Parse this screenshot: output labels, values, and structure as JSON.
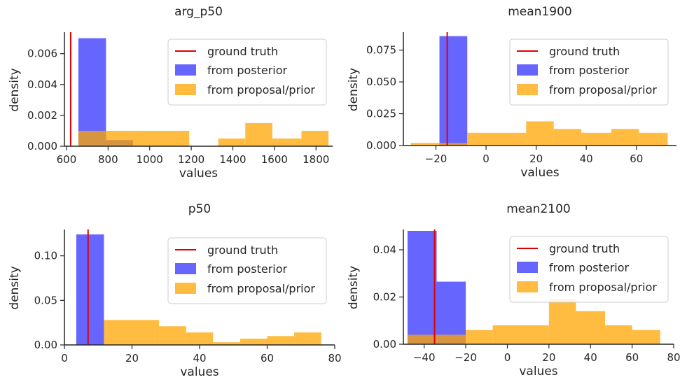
{
  "chart_data": [
    {
      "type": "histogram",
      "title": "arg_p50",
      "xlabel": "values",
      "ylabel": "density",
      "xlim": [
        590,
        1880
      ],
      "ylim": [
        0,
        0.0073
      ],
      "xticks": [
        600,
        800,
        1000,
        1200,
        1400,
        1600,
        1800
      ],
      "xtick_labels": [
        "600",
        "800",
        "1000",
        "1200",
        "1400",
        "1600",
        "1800"
      ],
      "yticks": [
        0,
        0.002,
        0.004,
        0.006
      ],
      "ytick_labels": [
        "0.000",
        "0.002",
        "0.004",
        "0.006"
      ],
      "ground_truth": 620,
      "legend_position": "top-right",
      "series": [
        {
          "name": "from posterior",
          "color": "#0000ff",
          "opacity": 0.6,
          "bins": [
            [
              657,
              790,
              0.007
            ],
            [
              790,
              920,
              0.0004
            ]
          ]
        },
        {
          "name": "from proposal/prior",
          "color": "#ffa500",
          "opacity": 0.75,
          "bins": [
            [
              657,
              790,
              0.001
            ],
            [
              790,
              1190,
              0.001
            ],
            [
              1330,
              1460,
              0.0005
            ],
            [
              1460,
              1590,
              0.0015
            ],
            [
              1590,
              1730,
              0.0005
            ],
            [
              1730,
              1860,
              0.001
            ]
          ]
        }
      ]
    },
    {
      "type": "histogram",
      "title": "mean1900",
      "xlabel": "values",
      "ylabel": "density",
      "xlim": [
        -33,
        76
      ],
      "ylim": [
        0,
        0.088
      ],
      "xticks": [
        -20,
        0,
        20,
        40,
        60
      ],
      "xtick_labels": [
        "−20",
        "0",
        "20",
        "40",
        "60"
      ],
      "yticks": [
        0,
        0.025,
        0.05,
        0.075
      ],
      "ytick_labels": [
        "0.000",
        "0.025",
        "0.050",
        "0.075"
      ],
      "ground_truth": -15.5,
      "legend_position": "top-right",
      "series": [
        {
          "name": "from posterior",
          "color": "#0000ff",
          "opacity": 0.6,
          "bins": [
            [
              -18.6,
              -7.5,
              0.086
            ]
          ]
        },
        {
          "name": "from proposal/prior",
          "color": "#ffa500",
          "opacity": 0.75,
          "bins": [
            [
              -30,
              -18.6,
              0.002
            ],
            [
              -18.6,
              -7.5,
              0.002
            ],
            [
              -7.5,
              16,
              0.01
            ],
            [
              16,
              27,
              0.019
            ],
            [
              27,
              38,
              0.013
            ],
            [
              38,
              50,
              0.01
            ],
            [
              50,
              61,
              0.013
            ],
            [
              61,
              72.5,
              0.01
            ]
          ]
        }
      ]
    },
    {
      "type": "histogram",
      "title": "p50",
      "xlabel": "values",
      "ylabel": "density",
      "xlim": [
        0,
        80
      ],
      "ylim": [
        0,
        0.128
      ],
      "xticks": [
        0,
        20,
        40,
        60,
        80
      ],
      "xtick_labels": [
        "0",
        "20",
        "40",
        "60",
        "80"
      ],
      "yticks": [
        0,
        0.05,
        0.1
      ],
      "ytick_labels": [
        "0.00",
        "0.05",
        "0.10"
      ],
      "ground_truth": 7,
      "legend_position": "top-right",
      "series": [
        {
          "name": "from posterior",
          "color": "#0000ff",
          "opacity": 0.6,
          "bins": [
            [
              3.5,
              11.7,
              0.124
            ]
          ]
        },
        {
          "name": "from proposal/prior",
          "color": "#ffa500",
          "opacity": 0.75,
          "bins": [
            [
              11.7,
              28,
              0.028
            ],
            [
              28,
              36,
              0.021
            ],
            [
              36,
              44,
              0.014
            ],
            [
              44,
              52,
              0.003
            ],
            [
              52,
              60,
              0.007
            ],
            [
              60,
              68,
              0.01
            ],
            [
              68,
              76,
              0.014
            ]
          ]
        }
      ]
    },
    {
      "type": "histogram",
      "title": "mean2100",
      "xlabel": "values",
      "ylabel": "density",
      "xlim": [
        -50,
        80
      ],
      "ylim": [
        0,
        0.048
      ],
      "xticks": [
        -40,
        -20,
        0,
        20,
        40,
        60,
        80
      ],
      "xtick_labels": [
        "−40",
        "−20",
        "0",
        "20",
        "40",
        "60",
        "80"
      ],
      "yticks": [
        0,
        0.02,
        0.04
      ],
      "ytick_labels": [
        "0.00",
        "0.02",
        "0.04"
      ],
      "ground_truth": -35,
      "legend_position": "top-right",
      "series": [
        {
          "name": "from posterior",
          "color": "#0000ff",
          "opacity": 0.6,
          "bins": [
            [
              -48,
              -34,
              0.048
            ],
            [
              -34,
              -20,
              0.0265
            ]
          ]
        },
        {
          "name": "from proposal/prior",
          "color": "#ffa500",
          "opacity": 0.75,
          "bins": [
            [
              -48,
              -34,
              0.004
            ],
            [
              -34,
              -20,
              0.004
            ],
            [
              -20,
              -7,
              0.006
            ],
            [
              -7,
              20,
              0.008
            ],
            [
              20,
              33,
              0.019
            ],
            [
              33,
              47,
              0.014
            ],
            [
              47,
              60,
              0.008
            ],
            [
              60,
              73.5,
              0.006
            ]
          ]
        }
      ]
    }
  ],
  "legend": {
    "ground_truth_label": "ground truth",
    "ground_truth_color": "#e00000"
  }
}
